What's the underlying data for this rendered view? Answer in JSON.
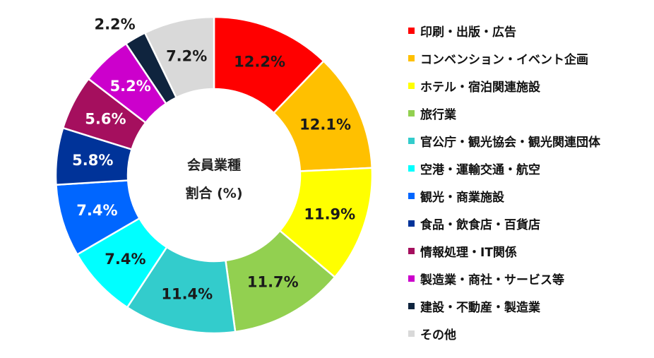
{
  "chart_data": {
    "type": "pie",
    "variant": "donut",
    "center_label": [
      "会員業種",
      "割合 (%)"
    ],
    "legend_position": "right",
    "series": [
      {
        "name": "印刷・出版・広告",
        "value": 12.2,
        "label": "12.2%",
        "color": "#FF0000"
      },
      {
        "name": "コンベンション・イベント企画",
        "value": 12.1,
        "label": "12.1%",
        "color": "#FFC000"
      },
      {
        "name": "ホテル・宿泊関連施設",
        "value": 11.9,
        "label": "11.9%",
        "color": "#FFFF00"
      },
      {
        "name": "旅行業",
        "value": 11.7,
        "label": "11.7%",
        "color": "#92D050"
      },
      {
        "name": "官公庁・観光協会・観光関連団体",
        "value": 11.4,
        "label": "11.4%",
        "color": "#33CCCC"
      },
      {
        "name": "空港・運輸交通・航空",
        "value": 7.4,
        "label": "7.4%",
        "color": "#00FFFF"
      },
      {
        "name": "観光・商業施設",
        "value": 7.4,
        "label": "7.4%",
        "color": "#0066FF"
      },
      {
        "name": "食品・飲食店・百貨店",
        "value": 5.8,
        "label": "5.8%",
        "color": "#003399"
      },
      {
        "name": "情報処理・IT関係",
        "value": 5.6,
        "label": "5.6%",
        "color": "#A50F5E"
      },
      {
        "name": "製造業・商社・サービス等",
        "value": 5.2,
        "label": "5.2%",
        "color": "#CC00CC"
      },
      {
        "name": "建設・不動産・製造業",
        "value": 2.2,
        "label": "2.2%",
        "color": "#0F243E"
      },
      {
        "name": "その他",
        "value": 7.2,
        "label": "7.2%",
        "color": "#D9D9D9"
      }
    ]
  }
}
